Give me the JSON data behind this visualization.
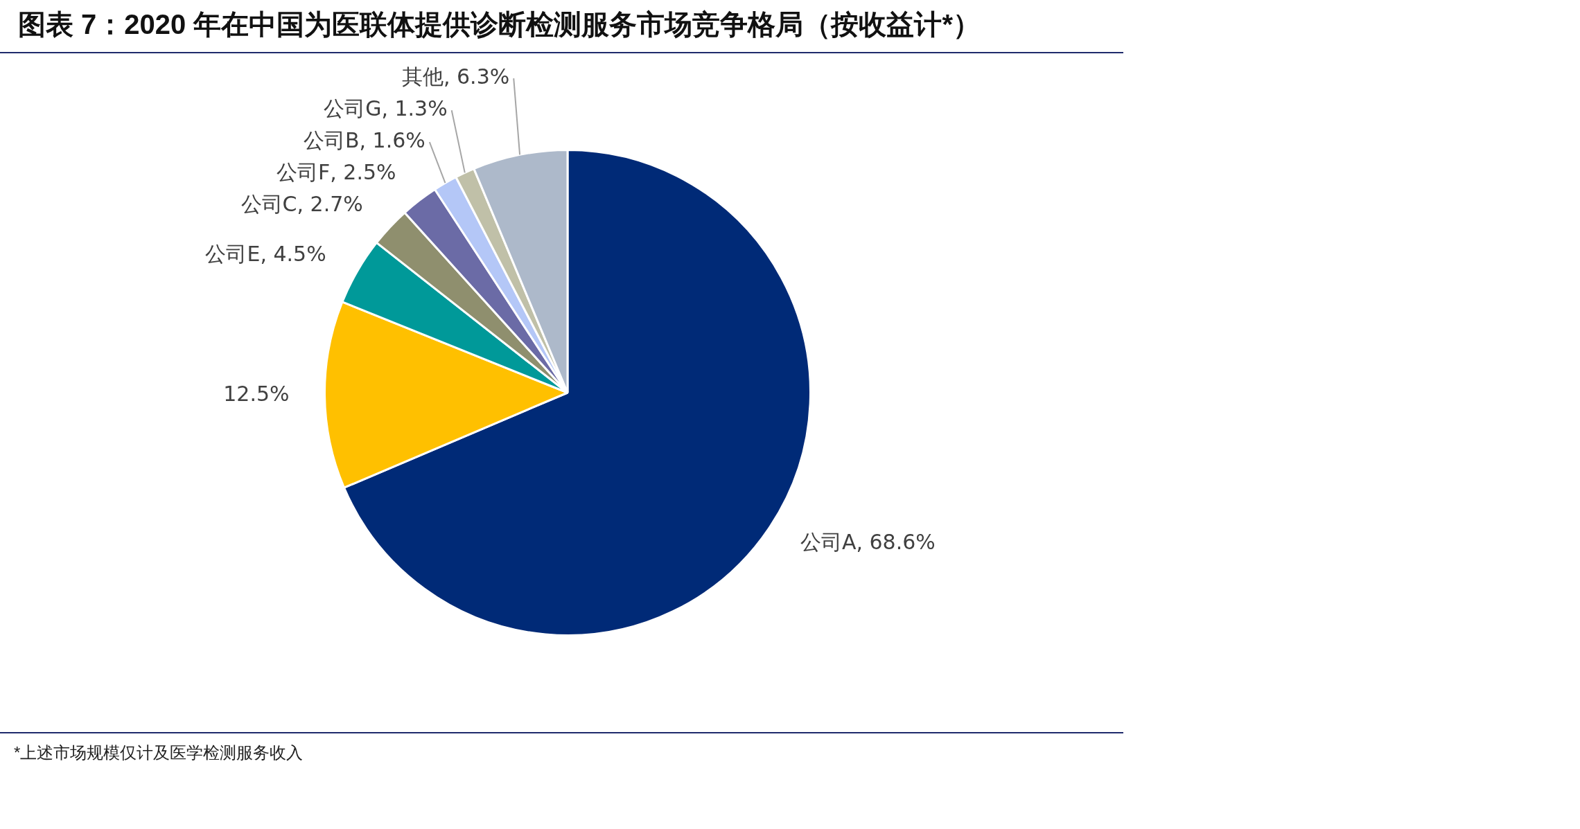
{
  "chart_data": {
    "type": "pie",
    "title": "图表 7：2020 年在中国为医联体提供诊断检测服务市场竞争格局（按收益计*）",
    "categories": [
      "公司A",
      null,
      "公司E",
      "公司C",
      "公司F",
      "公司B",
      "公司G",
      "其他"
    ],
    "values": [
      68.6,
      12.5,
      4.5,
      2.7,
      2.5,
      1.6,
      1.3,
      6.3
    ],
    "value_labels": [
      "68.6%",
      "12.5%",
      "4.5%",
      "2.7%",
      "2.5%",
      "1.6%",
      "1.3%",
      "6.3%"
    ],
    "colors": [
      "#002a77",
      "#ffc000",
      "#009999",
      "#8f8f6e",
      "#6b6ba6",
      "#b4c7f7",
      "#c0c0a8",
      "#adb9ca"
    ],
    "legend": false,
    "annotations": [
      "*上述市场规模仅计及医学检测服务收入"
    ]
  }
}
